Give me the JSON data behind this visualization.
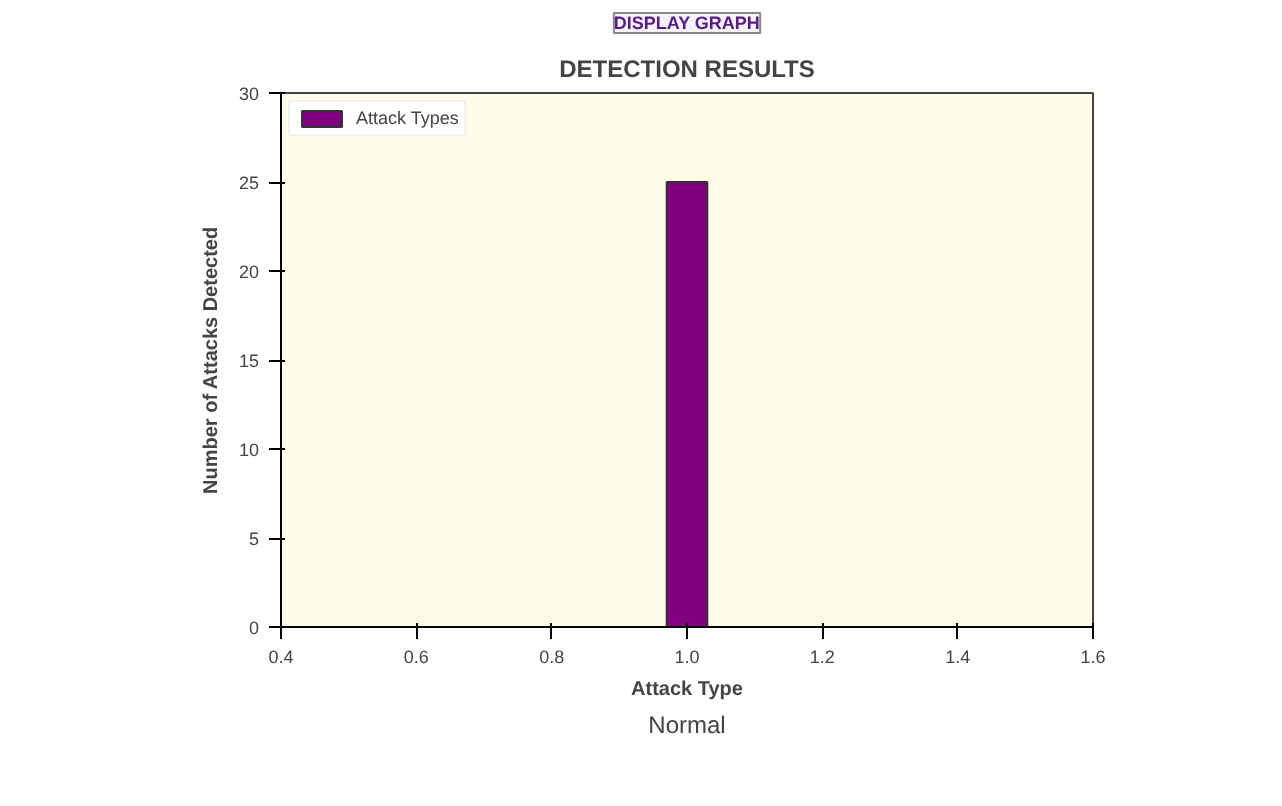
{
  "chart_data": {
    "type": "bar",
    "title": "DETECTION RESULTS",
    "xlabel": "Attack Type",
    "ylabel": "Number of Attacks Detected",
    "x": [
      1.0
    ],
    "series": [
      {
        "name": "Attack Types",
        "color": "#800080",
        "values": [
          25
        ]
      }
    ],
    "xlim": [
      0.4,
      1.6
    ],
    "xticks": [
      {
        "value": 0.4,
        "label": "0.4"
      },
      {
        "value": 0.6,
        "label": "0.6"
      },
      {
        "value": 0.8,
        "label": "0.8"
      },
      {
        "value": 1.0,
        "label": "1.0"
      },
      {
        "value": 1.2,
        "label": "1.2"
      },
      {
        "value": 1.4,
        "label": "1.4"
      },
      {
        "value": 1.6,
        "label": "1.6"
      }
    ],
    "ylim": [
      0,
      30
    ],
    "yticks": [
      0,
      5,
      10,
      15,
      20,
      25,
      30
    ],
    "annotations": [
      "DISPLAY GRAPH",
      "Normal"
    ],
    "legend": "top left",
    "grid": false
  }
}
